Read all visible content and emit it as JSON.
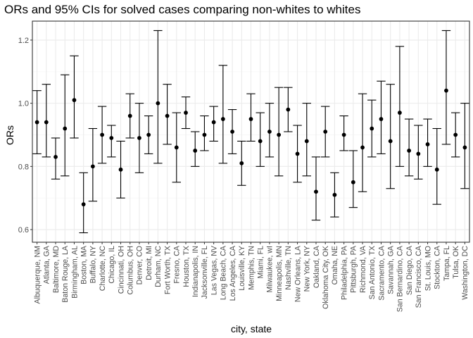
{
  "chart_data": {
    "type": "scatter",
    "title": "ORs and 95% CIs for solved cases comparing non-whites to whites",
    "xlabel": "city, state",
    "ylabel": "ORs",
    "ylim": [
      0.56,
      1.26
    ],
    "yticks": [
      0.6,
      0.8,
      1.0,
      1.2
    ],
    "ytick_labels": [
      "0.6",
      "0.8",
      "1.0",
      "1.2"
    ],
    "grid": true,
    "legend": "none",
    "colors": {
      "point": "#000000",
      "errorbar": "#000000",
      "grid_major": "#ebebeb",
      "grid_minor": "#f5f5f5",
      "panel_border": "#333333"
    },
    "categories": [
      "Albuquerque, NM",
      "Atlanta, GA",
      "Baltimore, MD",
      "Baton Rouge, LA",
      "Birmingham, AL",
      "Boston, MA",
      "Buffalo, NY",
      "Charlotte, NC",
      "Chicago, IL",
      "Cincinnati, OH",
      "Columbus, OH",
      "Denver, CO",
      "Detroit, MI",
      "Durham, NC",
      "Fort Worth, TX",
      "Fresno, CA",
      "Houston, TX",
      "Indianapolis, IN",
      "Jacksonville, FL",
      "Las Vegas, NV",
      "Long Beach, CA",
      "Los Angeles, CA",
      "Louisville, KY",
      "Memphis, TN",
      "Miami, FL",
      "Milwaukee, wI",
      "Minneapolis, MN",
      "Nashville, TN",
      "New Orleans, LA",
      "New York, NY",
      "Oakland, CA",
      "Oklahoma City, OK",
      "Omaha, NE",
      "Philadelphia, PA",
      "Pittsburgh, PA",
      "Richmond, VA",
      "San Antonio, TX",
      "Sacramento, CA",
      "Savannah, GA",
      "San Bernardino, CA",
      "San Diego, CA",
      "San Francisco, CA",
      "St. Louis, MO",
      "Stockton, CA",
      "Tampa, FL",
      "Tulsa, OK",
      "Washington, DC"
    ],
    "or": [
      0.94,
      0.94,
      0.83,
      0.92,
      1.01,
      0.68,
      0.8,
      0.9,
      0.89,
      0.79,
      0.96,
      0.89,
      0.9,
      1.0,
      0.96,
      0.86,
      0.97,
      0.85,
      0.9,
      0.94,
      0.95,
      0.91,
      0.81,
      0.95,
      0.88,
      0.91,
      0.9,
      0.98,
      0.84,
      0.88,
      0.72,
      0.91,
      0.71,
      0.9,
      0.75,
      0.86,
      0.92,
      0.95,
      0.88,
      0.97,
      0.85,
      0.84,
      0.87,
      0.79,
      1.04,
      0.9,
      0.86
    ],
    "ci_low": [
      0.84,
      0.83,
      0.76,
      0.77,
      0.89,
      0.59,
      0.69,
      0.81,
      0.83,
      0.7,
      0.89,
      0.78,
      0.84,
      0.81,
      0.87,
      0.75,
      0.92,
      0.8,
      0.85,
      0.88,
      0.81,
      0.84,
      0.74,
      0.88,
      0.8,
      0.83,
      0.77,
      0.91,
      0.75,
      0.77,
      0.63,
      0.83,
      0.64,
      0.85,
      0.67,
      0.72,
      0.83,
      0.84,
      0.73,
      0.8,
      0.77,
      0.76,
      0.8,
      0.68,
      0.87,
      0.83,
      0.73
    ],
    "ci_high": [
      1.04,
      1.06,
      0.89,
      1.09,
      1.15,
      0.78,
      0.92,
      0.99,
      0.93,
      0.88,
      1.03,
      1.0,
      0.96,
      1.23,
      1.06,
      0.97,
      1.02,
      0.91,
      0.96,
      0.99,
      1.12,
      0.98,
      0.88,
      1.03,
      0.97,
      1.0,
      1.05,
      1.05,
      0.93,
      1.0,
      0.83,
      0.99,
      0.78,
      0.96,
      0.85,
      1.03,
      1.01,
      1.07,
      1.06,
      1.18,
      0.95,
      0.93,
      0.95,
      0.92,
      1.23,
      0.97,
      1.0
    ]
  }
}
